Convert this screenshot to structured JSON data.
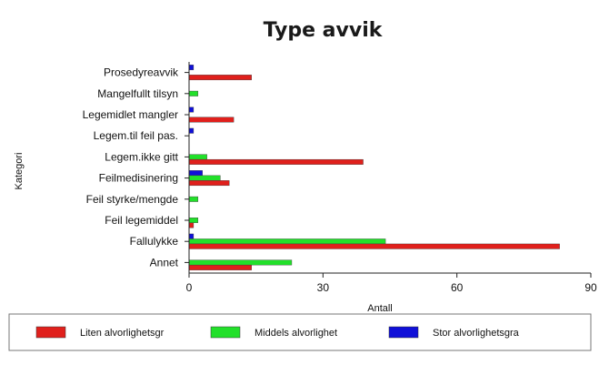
{
  "chart_data": {
    "type": "bar",
    "orientation": "horizontal",
    "title": "Type avvik",
    "xlabel": "Antall",
    "ylabel": "Kategori",
    "xlim": [
      0,
      90
    ],
    "xticks": [
      0,
      30,
      60,
      90
    ],
    "categories": [
      "Prosedyreavvik",
      "Mangelfullt tilsyn",
      "Legemidlet mangler",
      "Legem.til feil pas.",
      "Legem.ikke gitt",
      "Feilmedisinering",
      "Feil styrke/mengde",
      "Feil legemiddel",
      "Fallulykke",
      "Annet"
    ],
    "series": [
      {
        "name": "Liten alvorlighetsgr",
        "color": "#e0201c",
        "values": [
          14,
          0,
          10,
          0,
          39,
          9,
          0,
          1,
          83,
          14
        ]
      },
      {
        "name": "Middels alvorlighet",
        "color": "#22e02a",
        "values": [
          0,
          2,
          0,
          0,
          4,
          7,
          2,
          2,
          44,
          23
        ]
      },
      {
        "name": "Stor alvorlighetsgra",
        "color": "#1010d8",
        "values": [
          1,
          0,
          1,
          1,
          0,
          3,
          0,
          0,
          1,
          0
        ]
      }
    ],
    "legend": "bottom",
    "grid": false
  }
}
